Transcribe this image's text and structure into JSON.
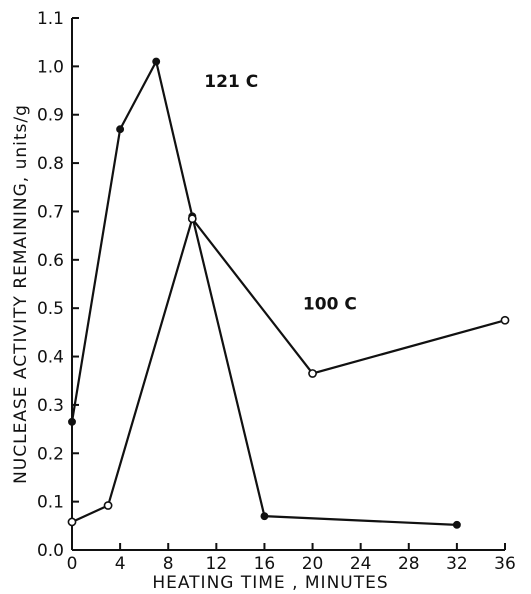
{
  "chart_data": {
    "type": "line",
    "title": "",
    "xlabel": "HEATING TIME , MINUTES",
    "ylabel": "NUCLEASE ACTIVITY REMAINING, units/g",
    "xlim": [
      0,
      36
    ],
    "ylim": [
      0,
      1.1
    ],
    "x_ticks": [
      "0",
      "4",
      "8",
      "12",
      "16",
      "20",
      "24",
      "28",
      "32",
      "36"
    ],
    "y_ticks": [
      "0.0",
      "0.1",
      "0.2",
      "0.3",
      "0.4",
      "0.5",
      "0.6",
      "0.7",
      "0.8",
      "0.9",
      "1.0",
      "1.1"
    ],
    "grid": false,
    "legend": "none",
    "series": [
      {
        "name": "121 C",
        "marker": "filled",
        "label_at": [
          11,
          0.97
        ],
        "points": [
          [
            0,
            0.265
          ],
          [
            4,
            0.87
          ],
          [
            7,
            1.01
          ],
          [
            10,
            0.69
          ],
          [
            16,
            0.07
          ],
          [
            32,
            0.052
          ]
        ]
      },
      {
        "name": "100 C",
        "marker": "open",
        "label_at": [
          19.2,
          0.51
        ],
        "points": [
          [
            0,
            0.058
          ],
          [
            3,
            0.092
          ],
          [
            10,
            0.685
          ],
          [
            20,
            0.365
          ],
          [
            36,
            0.475
          ]
        ]
      }
    ]
  }
}
